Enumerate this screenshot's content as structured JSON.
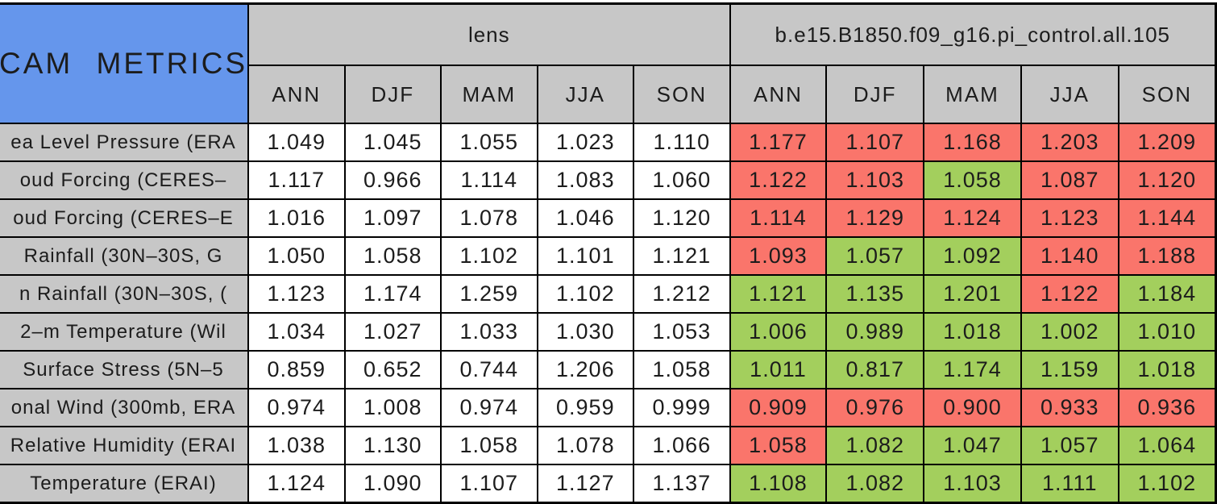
{
  "chart_data": {
    "type": "table",
    "title": "CAM METRICS",
    "column_groups": [
      "lens",
      "b.e15.B1850.f09_g16.pi_control.all.105"
    ],
    "columns": [
      "ANN",
      "DJF",
      "MAM",
      "JJA",
      "SON"
    ],
    "rows": [
      {
        "label": "ea Level Pressure (ERA",
        "lens": [
          "1.049",
          "1.045",
          "1.055",
          "1.023",
          "1.110"
        ],
        "case": [
          "1.177",
          "1.107",
          "1.168",
          "1.203",
          "1.209"
        ],
        "case_colors": [
          "red",
          "red",
          "red",
          "red",
          "red"
        ]
      },
      {
        "label": "oud Forcing (CERES–",
        "lens": [
          "1.117",
          "0.966",
          "1.114",
          "1.083",
          "1.060"
        ],
        "case": [
          "1.122",
          "1.103",
          "1.058",
          "1.087",
          "1.120"
        ],
        "case_colors": [
          "red",
          "red",
          "green",
          "red",
          "red"
        ]
      },
      {
        "label": "oud Forcing (CERES–E",
        "lens": [
          "1.016",
          "1.097",
          "1.078",
          "1.046",
          "1.120"
        ],
        "case": [
          "1.114",
          "1.129",
          "1.124",
          "1.123",
          "1.144"
        ],
        "case_colors": [
          "red",
          "red",
          "red",
          "red",
          "red"
        ]
      },
      {
        "label": "Rainfall (30N–30S, G",
        "lens": [
          "1.050",
          "1.058",
          "1.102",
          "1.101",
          "1.121"
        ],
        "case": [
          "1.093",
          "1.057",
          "1.092",
          "1.140",
          "1.188"
        ],
        "case_colors": [
          "red",
          "green",
          "green",
          "red",
          "red"
        ]
      },
      {
        "label": "n Rainfall (30N–30S, (",
        "lens": [
          "1.123",
          "1.174",
          "1.259",
          "1.102",
          "1.212"
        ],
        "case": [
          "1.121",
          "1.135",
          "1.201",
          "1.122",
          "1.184"
        ],
        "case_colors": [
          "green",
          "green",
          "green",
          "red",
          "green"
        ]
      },
      {
        "label": "2–m Temperature (Wil",
        "lens": [
          "1.034",
          "1.027",
          "1.033",
          "1.030",
          "1.053"
        ],
        "case": [
          "1.006",
          "0.989",
          "1.018",
          "1.002",
          "1.010"
        ],
        "case_colors": [
          "green",
          "green",
          "green",
          "green",
          "green"
        ]
      },
      {
        "label": "Surface Stress (5N–5",
        "lens": [
          "0.859",
          "0.652",
          "0.744",
          "1.206",
          "1.058"
        ],
        "case": [
          "1.011",
          "0.817",
          "1.174",
          "1.159",
          "1.018"
        ],
        "case_colors": [
          "green",
          "green",
          "green",
          "green",
          "green"
        ]
      },
      {
        "label": "onal Wind (300mb, ERA",
        "lens": [
          "0.974",
          "1.008",
          "0.974",
          "0.959",
          "0.999"
        ],
        "case": [
          "0.909",
          "0.976",
          "0.900",
          "0.933",
          "0.936"
        ],
        "case_colors": [
          "red",
          "red",
          "red",
          "red",
          "red"
        ]
      },
      {
        "label": "Relative Humidity (ERAI",
        "lens": [
          "1.038",
          "1.130",
          "1.058",
          "1.078",
          "1.066"
        ],
        "case": [
          "1.058",
          "1.082",
          "1.047",
          "1.057",
          "1.064"
        ],
        "case_colors": [
          "red",
          "green",
          "green",
          "green",
          "green"
        ]
      },
      {
        "label": "Temperature (ERAI)",
        "lens": [
          "1.124",
          "1.090",
          "1.107",
          "1.127",
          "1.137"
        ],
        "case": [
          "1.108",
          "1.082",
          "1.103",
          "1.111",
          "1.102"
        ],
        "case_colors": [
          "green",
          "green",
          "green",
          "green",
          "green"
        ]
      }
    ],
    "colors": {
      "red": "#FA756B",
      "green": "#A3CF5D",
      "header_blue": "#6596EC",
      "header_gray": "#C7C7C7",
      "cell_white": "#FFFFFF",
      "border_black": "#000000"
    }
  }
}
